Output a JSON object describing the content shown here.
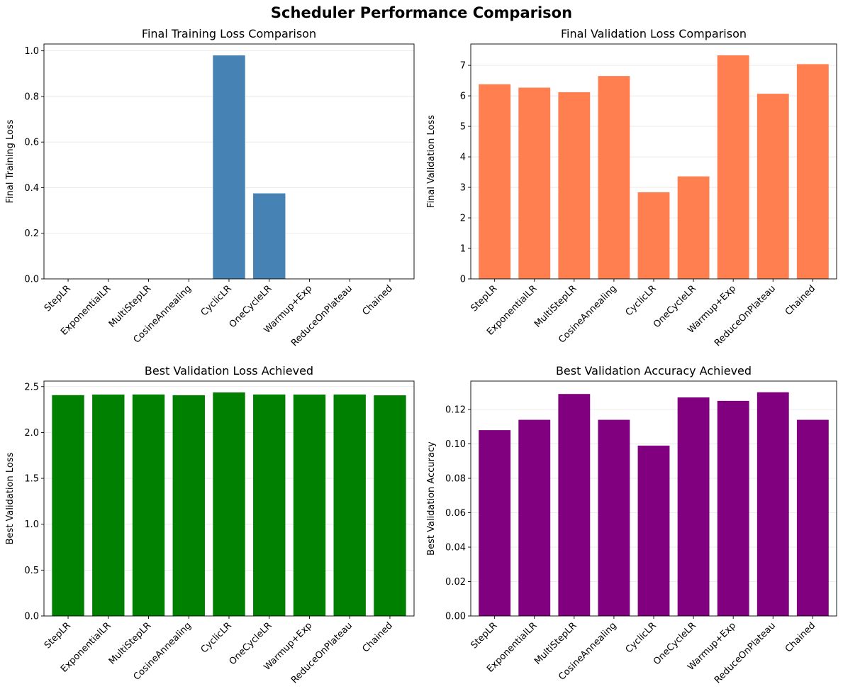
{
  "figure": {
    "title": "Scheduler Performance Comparison"
  },
  "chart_data": [
    {
      "type": "bar",
      "title": "Final Training Loss Comparison",
      "xlabel": "",
      "ylabel": "Final Training Loss",
      "categories": [
        "StepLR",
        "ExponentialLR",
        "MultiStepLR",
        "CosineAnnealing",
        "CyclicLR",
        "OneCycleLR",
        "Warmup+Exp",
        "ReduceOnPlateau",
        "Chained"
      ],
      "values": [
        0.0,
        0.0,
        0.0,
        0.0,
        0.98,
        0.375,
        0.0,
        0.0,
        0.0
      ],
      "ylim": [
        0,
        1.03
      ],
      "yticks": [
        0.0,
        0.2,
        0.4,
        0.6,
        0.8,
        1.0
      ],
      "tick_decimals": 1,
      "color": "#4682b4",
      "grid": "y"
    },
    {
      "type": "bar",
      "title": "Final Validation Loss Comparison",
      "xlabel": "",
      "ylabel": "Final Validation Loss",
      "categories": [
        "StepLR",
        "ExponentialLR",
        "MultiStepLR",
        "CosineAnnealing",
        "CyclicLR",
        "OneCycleLR",
        "Warmup+Exp",
        "ReduceOnPlateau",
        "Chained"
      ],
      "values": [
        6.38,
        6.27,
        6.12,
        6.65,
        2.84,
        3.36,
        7.33,
        6.07,
        7.04
      ],
      "ylim": [
        0,
        7.7
      ],
      "yticks": [
        0,
        1,
        2,
        3,
        4,
        5,
        6,
        7
      ],
      "tick_decimals": 0,
      "color": "#ff7f50",
      "grid": "y"
    },
    {
      "type": "bar",
      "title": "Best Validation Loss Achieved",
      "xlabel": "",
      "ylabel": "Best Validation Loss",
      "categories": [
        "StepLR",
        "ExponentialLR",
        "MultiStepLR",
        "CosineAnnealing",
        "CyclicLR",
        "OneCycleLR",
        "Warmup+Exp",
        "ReduceOnPlateau",
        "Chained"
      ],
      "values": [
        2.407,
        2.413,
        2.414,
        2.406,
        2.436,
        2.414,
        2.413,
        2.414,
        2.405
      ],
      "ylim": [
        0,
        2.56
      ],
      "yticks": [
        0.0,
        0.5,
        1.0,
        1.5,
        2.0,
        2.5
      ],
      "tick_decimals": 1,
      "color": "#008000",
      "grid": "y"
    },
    {
      "type": "bar",
      "title": "Best Validation Accuracy Achieved",
      "xlabel": "",
      "ylabel": "Best Validation Accuracy",
      "categories": [
        "StepLR",
        "ExponentialLR",
        "MultiStepLR",
        "CosineAnnealing",
        "CyclicLR",
        "OneCycleLR",
        "Warmup+Exp",
        "ReduceOnPlateau",
        "Chained"
      ],
      "values": [
        0.108,
        0.114,
        0.129,
        0.114,
        0.099,
        0.127,
        0.125,
        0.13,
        0.114
      ],
      "ylim": [
        0,
        0.1365
      ],
      "yticks": [
        0.0,
        0.02,
        0.04,
        0.06,
        0.08,
        0.1,
        0.12
      ],
      "tick_decimals": 2,
      "color": "#800080",
      "grid": "y"
    }
  ]
}
